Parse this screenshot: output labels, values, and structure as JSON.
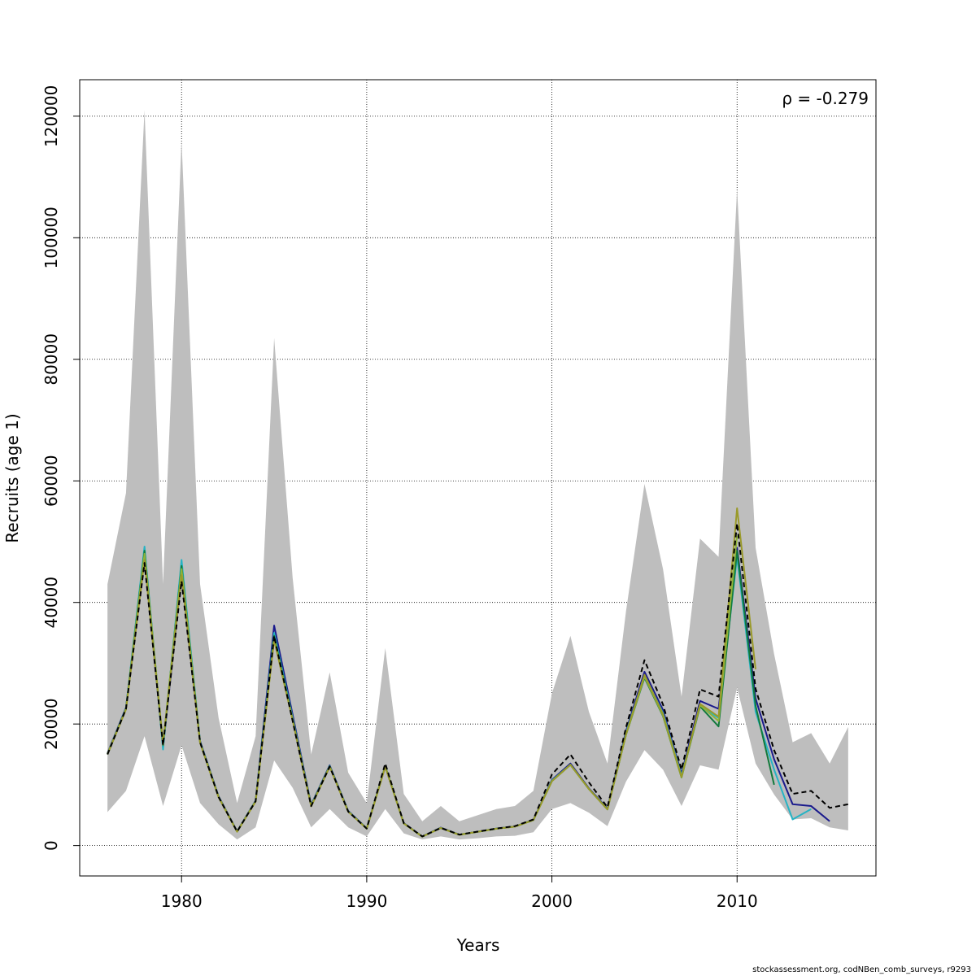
{
  "chart_data": {
    "type": "line",
    "title": "",
    "xlabel": "Years",
    "ylabel": "Recruits (age 1)",
    "annotation": "ρ = -0.279",
    "xlim": [
      1974.5,
      2017.5
    ],
    "ylim": [
      -5000,
      126000
    ],
    "x_ticks": [
      1980,
      1990,
      2000,
      2010
    ],
    "y_ticks": [
      0,
      20000,
      40000,
      60000,
      80000,
      100000,
      120000
    ],
    "grid": true,
    "confidence_band": {
      "years": [
        1976,
        1977,
        1978,
        1979,
        1980,
        1981,
        1982,
        1983,
        1984,
        1985,
        1986,
        1987,
        1988,
        1989,
        1990,
        1991,
        1992,
        1993,
        1994,
        1995,
        1996,
        1997,
        1998,
        1999,
        2000,
        2001,
        2002,
        2003,
        2004,
        2005,
        2006,
        2007,
        2008,
        2009,
        2010,
        2011,
        2012,
        2013,
        2014,
        2015,
        2016
      ],
      "upper": [
        43000,
        58000,
        121000,
        43000,
        116000,
        43000,
        21000,
        7000,
        18000,
        83500,
        44000,
        15000,
        28500,
        12000,
        7000,
        32500,
        8500,
        4000,
        6500,
        4000,
        5000,
        6000,
        6500,
        9000,
        25000,
        34500,
        22000,
        13500,
        38500,
        59500,
        45500,
        24500,
        50500,
        47500,
        108000,
        49000,
        31500,
        17000,
        18500,
        13500,
        19500
      ],
      "lower": [
        5500,
        9000,
        18000,
        6500,
        16500,
        7000,
        3500,
        1000,
        3000,
        14000,
        9500,
        3000,
        6000,
        3000,
        1500,
        6000,
        2000,
        1000,
        1500,
        1000,
        1200,
        1500,
        1600,
        2200,
        6000,
        7000,
        5400,
        3200,
        10500,
        15700,
        12500,
        6500,
        13200,
        12500,
        26000,
        13500,
        8400,
        4300,
        4500,
        3000,
        2500
      ]
    },
    "series": [
      {
        "color": "#000000",
        "dashed": true,
        "x": [
          1976,
          1977,
          1978,
          1979,
          1980,
          1981,
          1982,
          1983,
          1984,
          1985,
          1986,
          1987,
          1988,
          1989,
          1990,
          1991,
          1992,
          1993,
          1994,
          1995,
          1996,
          1997,
          1998,
          1999,
          2000,
          2001,
          2002,
          2003,
          2004,
          2005,
          2006,
          2007,
          2008,
          2009,
          2010,
          2011,
          2012,
          2013,
          2014,
          2015,
          2016
        ],
        "values": [
          15000,
          22500,
          46500,
          16500,
          43500,
          17000,
          8000,
          2300,
          7300,
          34500,
          20500,
          6500,
          13000,
          5600,
          2800,
          13500,
          3700,
          1500,
          2900,
          1800,
          2300,
          2800,
          3200,
          4300,
          11700,
          15000,
          10400,
          6300,
          19400,
          30500,
          23200,
          12500,
          25700,
          24500,
          53000,
          25800,
          15700,
          8500,
          9000,
          6200,
          6800
        ]
      },
      {
        "color": "#1a1a8c",
        "dashed": false,
        "x": [
          1976,
          1977,
          1978,
          1979,
          1980,
          1981,
          1982,
          1983,
          1984,
          1985,
          1986,
          1987,
          1988,
          1989,
          1990,
          1991,
          1992,
          1993,
          1994,
          1995,
          1996,
          1997,
          1998,
          1999,
          2000,
          2001,
          2002,
          2003,
          2004,
          2005,
          2006,
          2007,
          2008,
          2009,
          2010,
          2011,
          2012,
          2013,
          2014,
          2015
        ],
        "values": [
          15200,
          22700,
          48000,
          16200,
          44500,
          17200,
          8100,
          2350,
          7400,
          36200,
          21500,
          6700,
          13200,
          5700,
          2850,
          13000,
          3700,
          1500,
          2950,
          1800,
          2300,
          2800,
          3150,
          4250,
          10800,
          13500,
          9400,
          6100,
          18800,
          28600,
          22300,
          11800,
          23800,
          22500,
          49000,
          24200,
          14200,
          6800,
          6500,
          4000
        ]
      },
      {
        "color": "#26b3c4",
        "dashed": false,
        "x": [
          1976,
          1977,
          1978,
          1979,
          1980,
          1981,
          1982,
          1983,
          1984,
          1985,
          1986,
          1987,
          1988,
          1989,
          1990,
          1991,
          1992,
          1993,
          1994,
          1995,
          1996,
          1997,
          1998,
          1999,
          2000,
          2001,
          2002,
          2003,
          2004,
          2005,
          2006,
          2007,
          2008,
          2009,
          2010,
          2011,
          2012,
          2013,
          2014
        ],
        "values": [
          15100,
          22600,
          49200,
          15800,
          47000,
          17100,
          8050,
          2320,
          7350,
          35000,
          21000,
          6600,
          13100,
          5650,
          2820,
          13100,
          3650,
          1480,
          2900,
          1780,
          2280,
          2780,
          3120,
          4200,
          10700,
          13300,
          9300,
          6000,
          18500,
          28000,
          21800,
          11500,
          23000,
          21000,
          47500,
          22000,
          12500,
          4300,
          6000
        ]
      },
      {
        "color": "#137a3c",
        "dashed": false,
        "x": [
          1976,
          1977,
          1978,
          1979,
          1980,
          1981,
          1982,
          1983,
          1984,
          1985,
          1986,
          1987,
          1988,
          1989,
          1990,
          1991,
          1992,
          1993,
          1994,
          1995,
          1996,
          1997,
          1998,
          1999,
          2000,
          2001,
          2002,
          2003,
          2004,
          2005,
          2006,
          2007,
          2008,
          2009,
          2010,
          2011,
          2012
        ],
        "values": [
          15000,
          22500,
          48500,
          16500,
          46000,
          17000,
          8000,
          2300,
          7300,
          34500,
          20800,
          6550,
          13050,
          5600,
          2800,
          13050,
          3650,
          1480,
          2900,
          1780,
          2280,
          2780,
          3120,
          4200,
          10600,
          13300,
          9300,
          5950,
          18200,
          27600,
          21300,
          11200,
          22900,
          19600,
          48500,
          23000,
          10000
        ]
      },
      {
        "color": "#8fb33a",
        "dashed": false,
        "x": [
          1976,
          1977,
          1978,
          1979,
          1980,
          1981,
          1982,
          1983,
          1984,
          1985,
          1986,
          1987,
          1988,
          1989,
          1990,
          1991,
          1992,
          1993,
          1994,
          1995,
          1996,
          1997,
          1998,
          1999,
          2000,
          2001,
          2002,
          2003,
          2004,
          2005,
          2006,
          2007,
          2008,
          2009,
          2010
        ],
        "values": [
          15100,
          22500,
          48000,
          16800,
          45500,
          17000,
          8000,
          2300,
          7300,
          34000,
          20700,
          6500,
          13000,
          5600,
          2800,
          13000,
          3650,
          1480,
          2900,
          1780,
          2280,
          2780,
          3120,
          4200,
          10600,
          13300,
          9300,
          5950,
          18200,
          27800,
          21400,
          11200,
          23100,
          20500,
          51000
        ]
      },
      {
        "color": "#9a9a2a",
        "dashed": false,
        "x": [
          1976,
          1977,
          1978,
          1979,
          1980,
          1981,
          1982,
          1983,
          1984,
          1985,
          1986,
          1987,
          1988,
          1989,
          1990,
          1991,
          1992,
          1993,
          1994,
          1995,
          1996,
          1997,
          1998,
          1999,
          2000,
          2001,
          2002,
          2003,
          2004,
          2005,
          2006,
          2007,
          2008,
          2009,
          2010,
          2011
        ],
        "values": [
          15000,
          22400,
          47000,
          16600,
          44500,
          16900,
          7950,
          2280,
          7250,
          33800,
          20600,
          6450,
          12950,
          5580,
          2790,
          12950,
          3640,
          1470,
          2890,
          1770,
          2270,
          2770,
          3110,
          4190,
          10600,
          13300,
          9300,
          5950,
          18300,
          28100,
          21600,
          11300,
          23300,
          21200,
          55500,
          29000
        ]
      }
    ],
    "credit": "stockassessment.org, codNBen_comb_surveys, r9293"
  }
}
